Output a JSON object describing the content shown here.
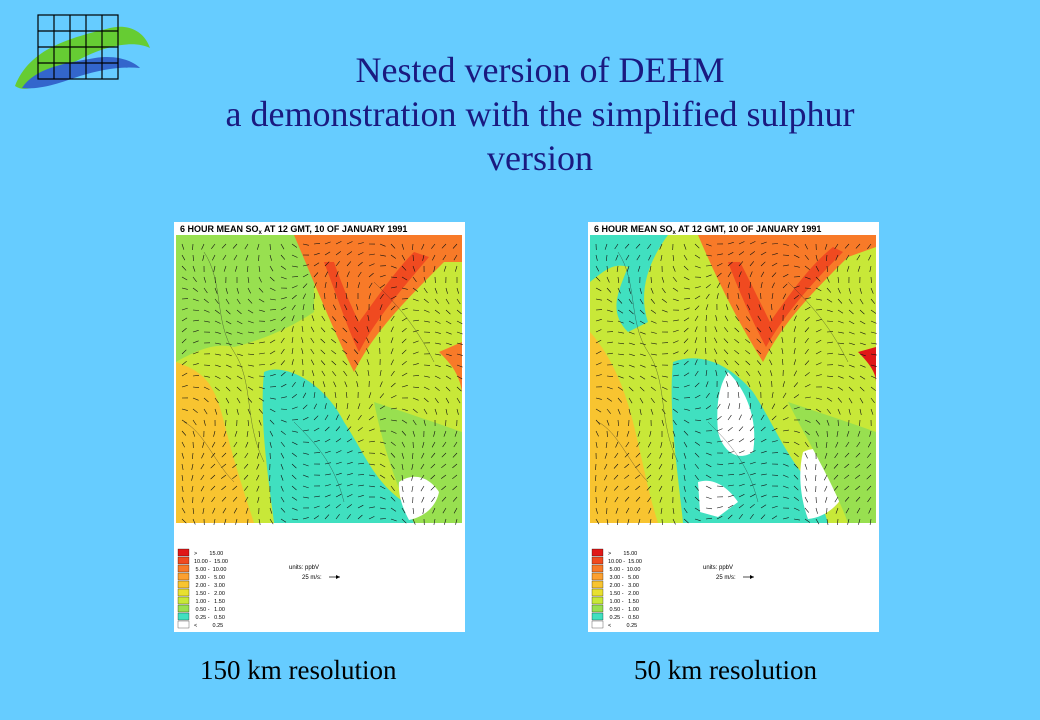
{
  "title": {
    "line1": "Nested version of DEHM",
    "line2": "a demonstration with the simplified sulphur",
    "line3": "version"
  },
  "colors": {
    "background": "#66ccff",
    "title_text": "#1a1a80",
    "logo_green": "#66cc33",
    "logo_blue": "#3366cc"
  },
  "panels": [
    {
      "map_title_prefix": "6 HOUR MEAN SO",
      "map_title_sub": "x",
      "map_title_suffix": " AT 12 GMT, 10 OF JANUARY 1991",
      "units_label": "units: ppbV",
      "wind_label": "25 m/s:",
      "caption": "150 km resolution"
    },
    {
      "map_title_prefix": "6 HOUR MEAN SO",
      "map_title_sub": "x",
      "map_title_suffix": " AT 12 GMT, 10 OF JANUARY 1991",
      "units_label": "units: ppbV",
      "wind_label": "25 m/s:",
      "caption": "50 km resolution"
    }
  ],
  "legend": {
    "items": [
      {
        "range": ">        15.00",
        "color": "#e01818"
      },
      {
        "range": "10.00 -  15.00",
        "color": "#f04a20"
      },
      {
        "range": " 5.00 -  10.00",
        "color": "#f87a28"
      },
      {
        "range": " 3.00 -   5.00",
        "color": "#fca030"
      },
      {
        "range": " 2.00 -   3.00",
        "color": "#f8c430"
      },
      {
        "range": " 1.50 -   2.00",
        "color": "#e8e030"
      },
      {
        "range": " 1.00 -   1.50",
        "color": "#c8e838"
      },
      {
        "range": " 0.50 -   1.00",
        "color": "#98e050"
      },
      {
        "range": " 0.25 -   0.50",
        "color": "#40e0c0"
      },
      {
        "range": "<          0.25",
        "color": "#ffffff"
      }
    ]
  }
}
